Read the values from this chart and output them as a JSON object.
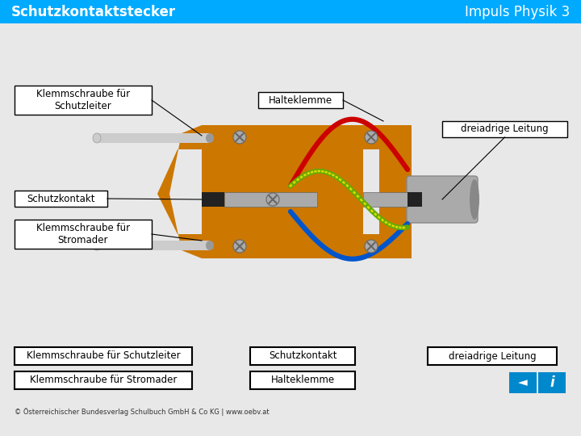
{
  "title_left": "Schutzkontaktstecker",
  "title_right": "Impuls Physik 3",
  "header_bg": "#00AAFF",
  "header_text_color": "#FFFFFF",
  "bg_color": "#E8E8E8",
  "plug_orange": "#CC7700",
  "plug_orange_light": "#DD8811",
  "pin_light": "#CCCCCC",
  "pin_dark": "#999999",
  "pin_tip": "#AAAAAA",
  "screw_body": "#AAAAAA",
  "screw_slot": "#666666",
  "wire_red": "#CC0000",
  "wire_blue": "#0055CC",
  "wire_green": "#66AA00",
  "wire_yellow": "#DDDD00",
  "cable_gray": "#AAAAAA",
  "cable_dark": "#888888",
  "contact_black": "#222222",
  "contact_gray": "#AAAAAA",
  "label_bg": "#FFFFFF",
  "label_border": "#000000",
  "copyright": "© Österreichischer Bundesverlag Schulbuch GmbH & Co KG | www.oebv.at",
  "nav_blue": "#0088CC"
}
